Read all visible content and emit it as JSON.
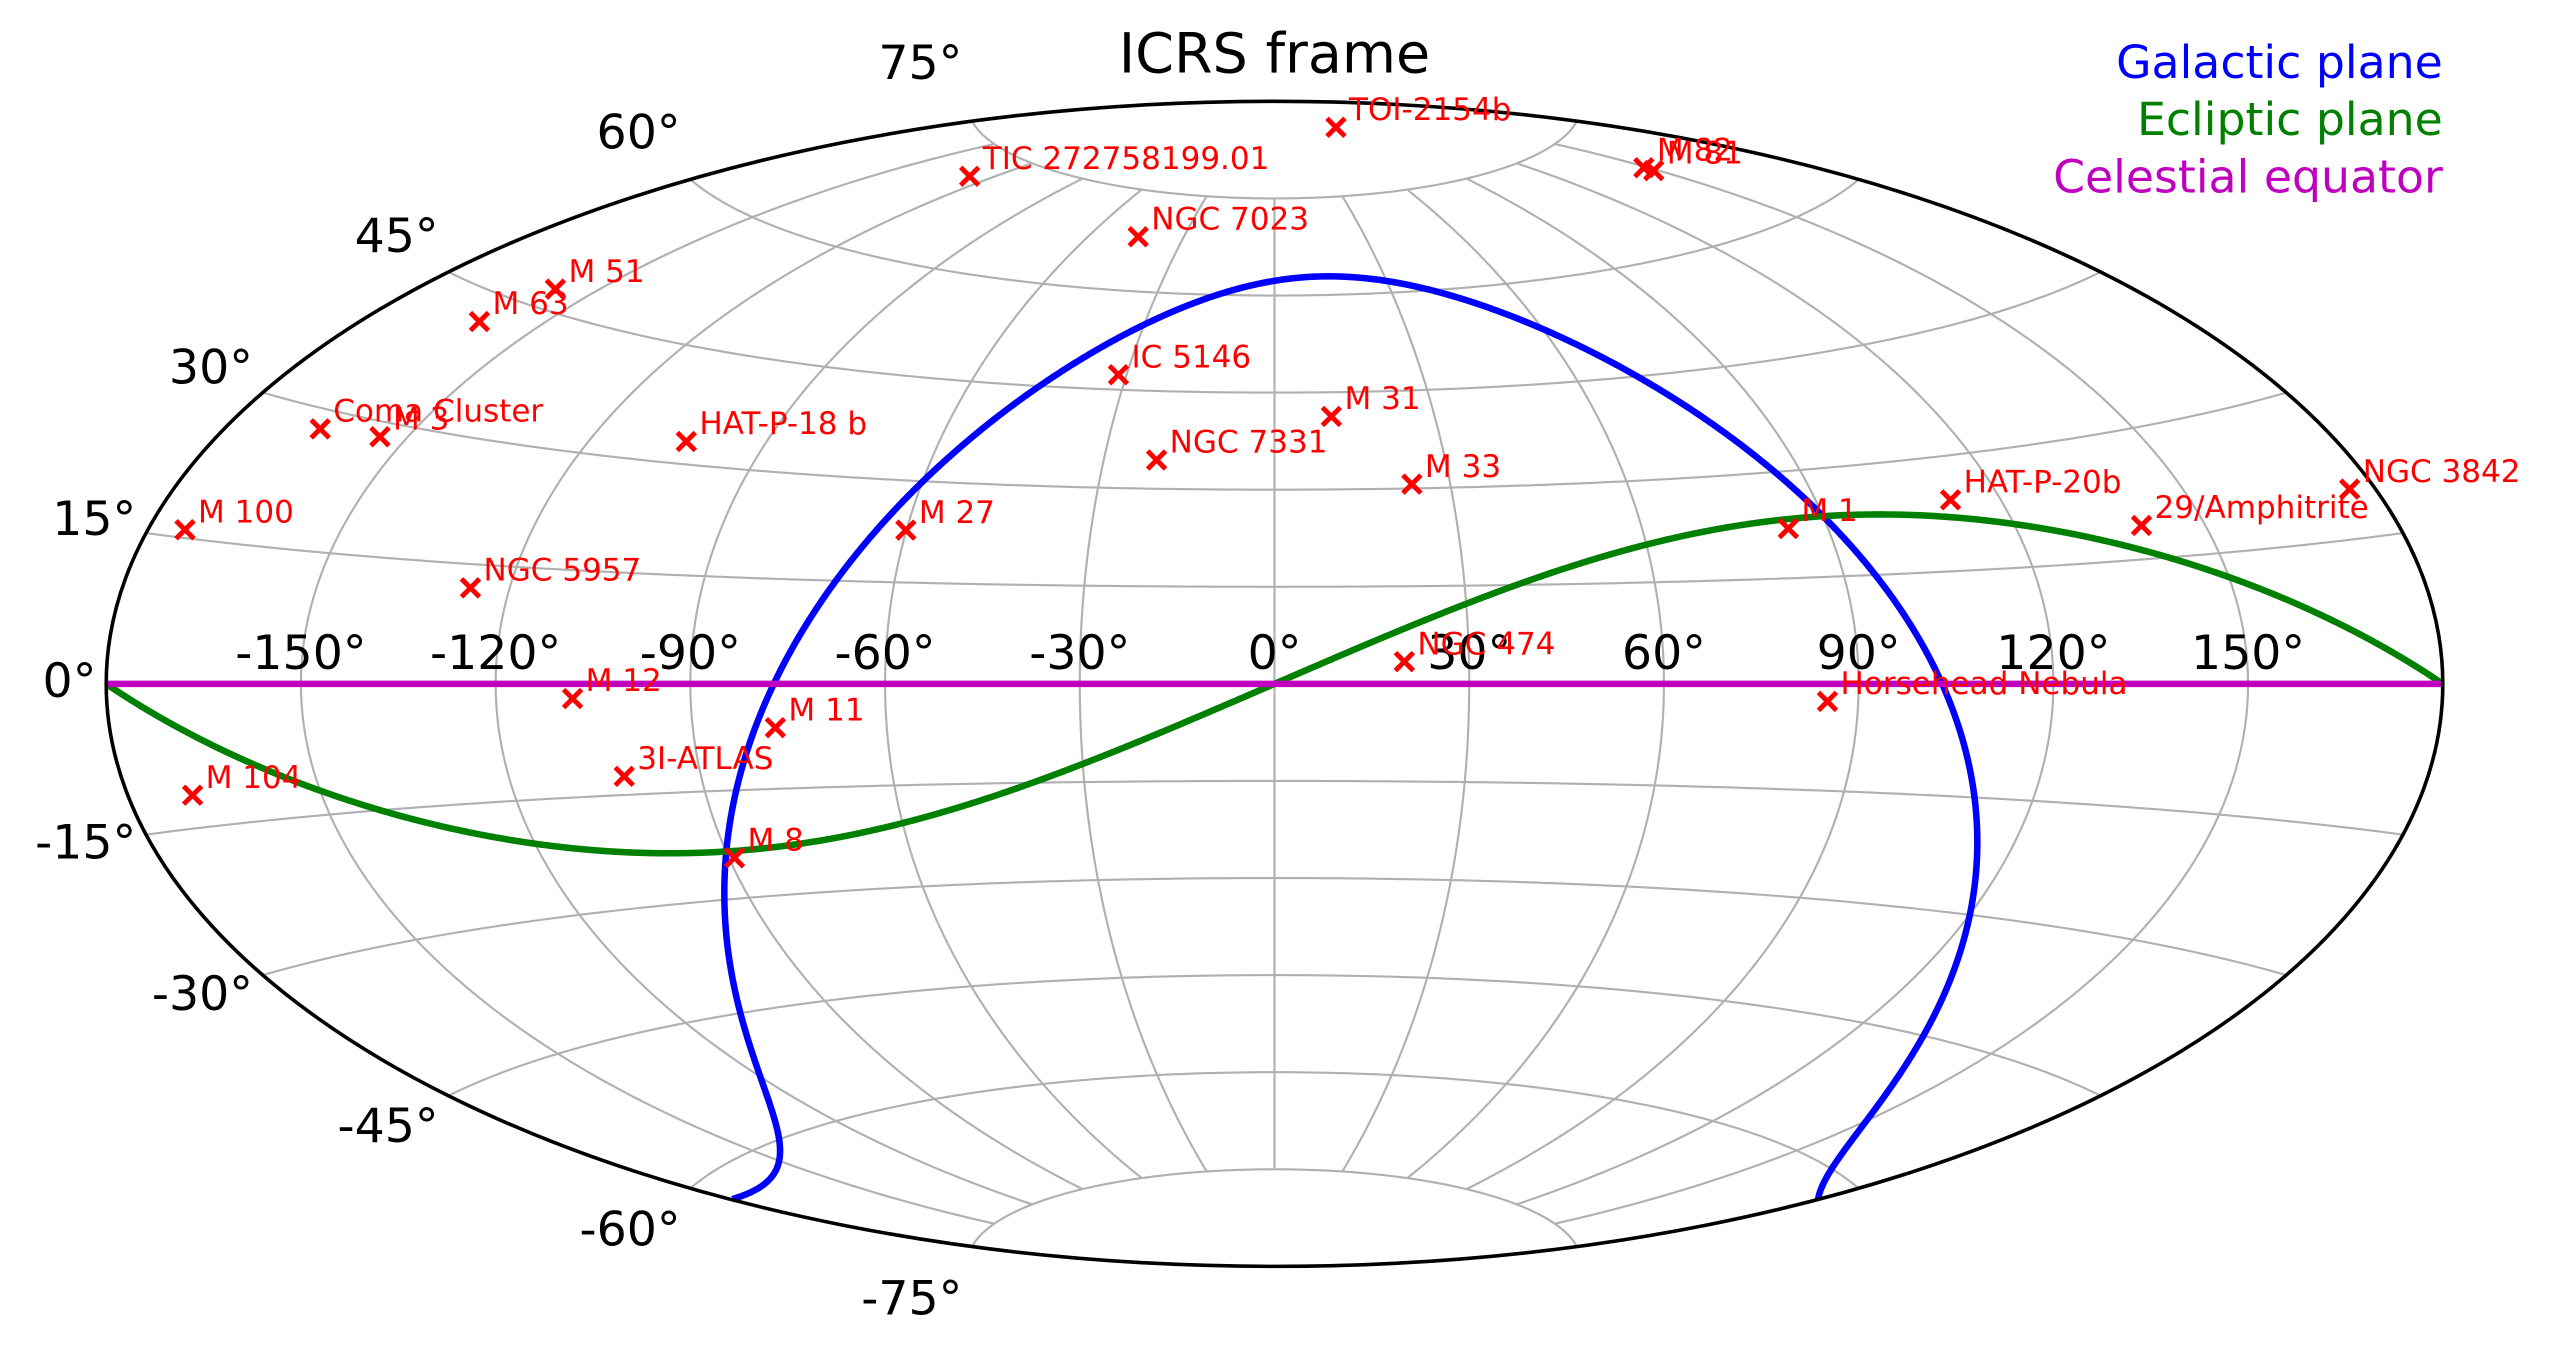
{
  "chart_data": {
    "type": "skymap",
    "projection": "aitoff",
    "title": "ICRS frame",
    "xlim": [
      -180,
      180
    ],
    "ylim": [
      -90,
      90
    ],
    "xticks": [
      {
        "value": -150,
        "label": "-150°"
      },
      {
        "value": -120,
        "label": "-120°"
      },
      {
        "value": -90,
        "label": "-90°"
      },
      {
        "value": -60,
        "label": "-60°"
      },
      {
        "value": -30,
        "label": "-30°"
      },
      {
        "value": 0,
        "label": "0°"
      },
      {
        "value": 30,
        "label": "30°"
      },
      {
        "value": 60,
        "label": "60°"
      },
      {
        "value": 90,
        "label": "90°"
      },
      {
        "value": 120,
        "label": "120°"
      },
      {
        "value": 150,
        "label": "150°"
      }
    ],
    "yticks": [
      {
        "value": -75,
        "label": "-75°"
      },
      {
        "value": -60,
        "label": "-60°"
      },
      {
        "value": -45,
        "label": "-45°"
      },
      {
        "value": -30,
        "label": "-30°"
      },
      {
        "value": -15,
        "label": "-15°"
      },
      {
        "value": 0,
        "label": "0°"
      },
      {
        "value": 15,
        "label": "15°"
      },
      {
        "value": 30,
        "label": "30°"
      },
      {
        "value": 45,
        "label": "45°"
      },
      {
        "value": 60,
        "label": "60°"
      },
      {
        "value": 75,
        "label": "75°"
      }
    ],
    "grid": true,
    "legend": "upper right",
    "series": [
      {
        "name": "Galactic plane",
        "color": "#0000ff",
        "pole": [
          192.86,
          27.13
        ]
      },
      {
        "name": "Ecliptic plane",
        "color": "#008000",
        "pole": [
          270,
          66.56
        ]
      },
      {
        "name": "Celestial equator",
        "color": "#bf00bf",
        "pole": [
          0,
          90
        ]
      }
    ],
    "marker_color": "#ff0000",
    "points": [
      {
        "name": "TOI-2154b",
        "ra": 78,
        "dec": 85
      },
      {
        "name": "M 82",
        "ra": 148.97,
        "dec": 69.68
      },
      {
        "name": "M 81",
        "ra": 148.89,
        "dec": 69.07
      },
      {
        "name": "TIC 272758199.01",
        "ra": 233,
        "dec": 71.5
      },
      {
        "name": "NGC 7023",
        "ra": 315.4,
        "dec": 68.17
      },
      {
        "name": "M 51",
        "ra": 202.47,
        "dec": 47.2
      },
      {
        "name": "M 63",
        "ra": 198.96,
        "dec": 42.03
      },
      {
        "name": "IC 5146",
        "ra": 328.37,
        "dec": 47.27
      },
      {
        "name": "M 31",
        "ra": 10.68,
        "dec": 41.27
      },
      {
        "name": "Coma Cluster",
        "ra": 194.95,
        "dec": 27.98
      },
      {
        "name": "M 3",
        "ra": 205.55,
        "dec": 28.38
      },
      {
        "name": "HAT-P-18 b",
        "ra": 256.35,
        "dec": 33.01
      },
      {
        "name": "NGC 7331",
        "ra": 339.27,
        "dec": 34.42
      },
      {
        "name": "M 33",
        "ra": 23.46,
        "dec": 30.66
      },
      {
        "name": "M 100",
        "ra": 185.73,
        "dec": 15.82
      },
      {
        "name": "M 27",
        "ra": 299.9,
        "dec": 22.72
      },
      {
        "name": "M 1",
        "ra": 83.63,
        "dec": 22.01
      },
      {
        "name": "HAT-P-20b",
        "ra": 111.92,
        "dec": 24.34
      },
      {
        "name": "29/Amphitrite",
        "ra": 140,
        "dec": 19
      },
      {
        "name": "NGC 3842",
        "ra": 176.0,
        "dec": 19.95
      },
      {
        "name": "NGC 5957",
        "ra": 233.9,
        "dec": 12.05
      },
      {
        "name": "NGC 474",
        "ra": 20.03,
        "dec": 3.42
      },
      {
        "name": "M 12",
        "ra": 251.81,
        "dec": -1.95
      },
      {
        "name": "M 11",
        "ra": 282.77,
        "dec": -6.27
      },
      {
        "name": "Horsehead Nebula",
        "ra": 85.25,
        "dec": -2.46
      },
      {
        "name": "M 104",
        "ra": 190.0,
        "dec": -11.62
      },
      {
        "name": "3I-ATLAS",
        "ra": 258,
        "dec": -12.5
      },
      {
        "name": "M 8",
        "ra": 270.9,
        "dec": -24.38
      }
    ]
  }
}
